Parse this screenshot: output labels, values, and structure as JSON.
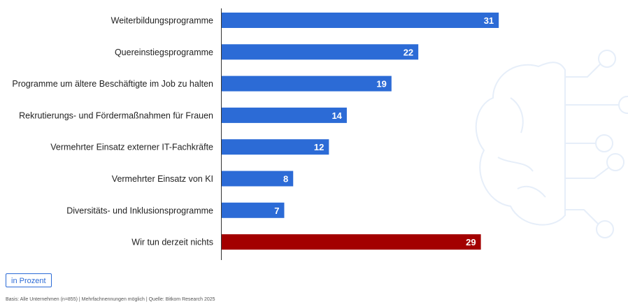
{
  "chart_data": {
    "type": "bar",
    "orientation": "horizontal",
    "categories": [
      "Weiterbildungsprogramme",
      "Quereinstiegsprogramme",
      "Programme um ältere Beschäftigte im Job zu halten",
      "Rekrutierungs- und Fördermaßnahmen für Frauen",
      "Vermehrter Einsatz externer IT-Fachkräfte",
      "Vermehrter Einsatz von KI",
      "Diversitäts- und Inklusionsprogramme",
      "Wir tun derzeit nichts"
    ],
    "values": [
      31,
      22,
      19,
      14,
      12,
      8,
      7,
      29
    ],
    "value_labels": [
      "31",
      "22",
      "19",
      "14",
      "12",
      "8",
      "7",
      "29"
    ],
    "xlim": [
      0,
      34
    ],
    "grid": false,
    "colors": {
      "default": "#2c6bd6",
      "highlight": "#a30000",
      "highlight_category": "Wir tun derzeit nichts"
    }
  },
  "unit_label": "in Prozent",
  "footnote": "Basis: Alle Unternehmen (n=855) | Mehrfachnennungen möglich | Quelle: Bitkom Research 2025",
  "colors": {
    "accent": "#2c6bd6",
    "highlight": "#a30000",
    "watermark": "#e6eef9"
  },
  "decoration": {
    "watermark_icon": "brain-circuit-icon"
  }
}
